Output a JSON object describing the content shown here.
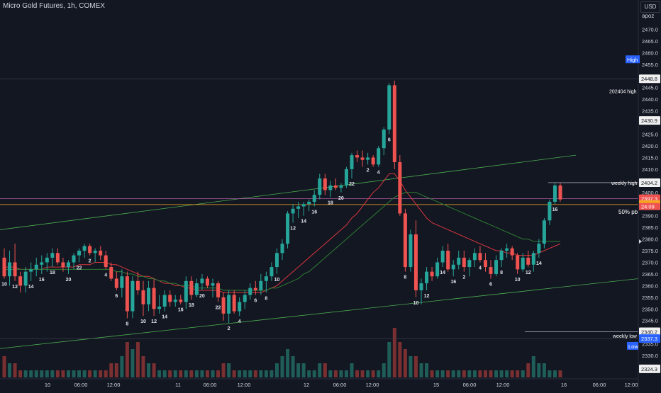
{
  "header": {
    "title": "Micro Gold Futures, 1h, COMEX",
    "currency": "USD",
    "scale_label": "apoz"
  },
  "colors": {
    "background": "#131722",
    "bull": "#26a69a",
    "bear": "#ef5350",
    "volume_bull": "#1f5d58",
    "volume_bear": "#7a2f31",
    "ma_red": "#d9363e",
    "ma_green": "#2e7d32",
    "trend": "#4caf50",
    "level_orange": "#f5a623",
    "level_magenta": "#b15aa7"
  },
  "chart_data": {
    "type": "candlestick",
    "title": "Micro Gold Futures, 1h, COMEX",
    "ylim": [
      2320,
      2475
    ],
    "grid": false,
    "y_ticks": [
      2325.0,
      2330.0,
      2335.0,
      2340.0,
      2345.0,
      2350.0,
      2355.0,
      2360.0,
      2365.0,
      2370.0,
      2375.0,
      2380.0,
      2385.0,
      2390.0,
      2395.0,
      2400.0,
      2405.0,
      2410.0,
      2415.0,
      2420.0,
      2425.0,
      2430.0,
      2435.0,
      2440.0,
      2445.0,
      2450.0,
      2455.0,
      2460.0,
      2465.0,
      2470.0
    ],
    "x_ticks": [
      "10",
      "06:00",
      "12:00",
      "11",
      "06:00",
      "12:00",
      "12",
      "06:00",
      "12:00",
      "15",
      "06:00",
      "12:00",
      "16",
      "06:00",
      "12:00"
    ],
    "candles": [
      [
        2372,
        2376,
        2363,
        2364
      ],
      [
        2364,
        2375,
        2360,
        2370
      ],
      [
        2370,
        2378,
        2362,
        2364
      ],
      [
        2364,
        2366,
        2357,
        2360
      ],
      [
        2360,
        2368,
        2357,
        2366
      ],
      [
        2366,
        2370,
        2362,
        2367
      ],
      [
        2367,
        2372,
        2364,
        2369
      ],
      [
        2369,
        2373,
        2365,
        2370
      ],
      [
        2370,
        2374,
        2366,
        2372
      ],
      [
        2372,
        2376,
        2368,
        2374
      ],
      [
        2374,
        2376,
        2369,
        2370
      ],
      [
        2370,
        2372,
        2366,
        2368
      ],
      [
        2368,
        2371,
        2365,
        2370
      ],
      [
        2370,
        2374,
        2367,
        2373
      ],
      [
        2373,
        2376,
        2370,
        2375
      ],
      [
        2375,
        2378,
        2372,
        2377
      ],
      [
        2377,
        2378,
        2373,
        2374
      ],
      [
        2374,
        2376,
        2370,
        2375
      ],
      [
        2375,
        2377,
        2371,
        2373
      ],
      [
        2373,
        2375,
        2367,
        2368
      ],
      [
        2368,
        2370,
        2362,
        2363
      ],
      [
        2363,
        2366,
        2358,
        2359
      ],
      [
        2359,
        2367,
        2355,
        2364
      ],
      [
        2364,
        2366,
        2346,
        2349
      ],
      [
        2349,
        2364,
        2346,
        2362
      ],
      [
        2362,
        2366,
        2356,
        2358
      ],
      [
        2358,
        2362,
        2347,
        2352
      ],
      [
        2352,
        2362,
        2349,
        2359
      ],
      [
        2359,
        2363,
        2347,
        2350
      ],
      [
        2350,
        2356,
        2348,
        2351
      ],
      [
        2351,
        2358,
        2349,
        2356
      ],
      [
        2356,
        2358,
        2351,
        2353
      ],
      [
        2353,
        2356,
        2351,
        2354
      ],
      [
        2354,
        2356,
        2352,
        2353
      ],
      [
        2353,
        2364,
        2350,
        2362
      ],
      [
        2362,
        2364,
        2354,
        2356
      ],
      [
        2356,
        2363,
        2355,
        2361
      ],
      [
        2361,
        2365,
        2358,
        2363
      ],
      [
        2363,
        2364,
        2359,
        2360
      ],
      [
        2360,
        2363,
        2355,
        2361
      ],
      [
        2361,
        2362,
        2353,
        2355
      ],
      [
        2355,
        2357,
        2345,
        2348
      ],
      [
        2348,
        2358,
        2344,
        2356
      ],
      [
        2356,
        2358,
        2348,
        2349
      ],
      [
        2349,
        2355,
        2347,
        2353
      ],
      [
        2353,
        2358,
        2350,
        2356
      ],
      [
        2356,
        2361,
        2354,
        2359
      ],
      [
        2359,
        2362,
        2356,
        2358
      ],
      [
        2358,
        2365,
        2356,
        2362
      ],
      [
        2362,
        2366,
        2357,
        2364
      ],
      [
        2364,
        2370,
        2362,
        2368
      ],
      [
        2368,
        2376,
        2365,
        2374
      ],
      [
        2374,
        2380,
        2371,
        2378
      ],
      [
        2378,
        2392,
        2376,
        2391
      ],
      [
        2391,
        2395,
        2387,
        2393
      ],
      [
        2393,
        2396,
        2389,
        2394
      ],
      [
        2394,
        2396,
        2390,
        2395
      ],
      [
        2395,
        2397,
        2392,
        2396
      ],
      [
        2396,
        2401,
        2394,
        2399
      ],
      [
        2399,
        2408,
        2397,
        2406
      ],
      [
        2406,
        2408,
        2399,
        2401
      ],
      [
        2401,
        2405,
        2398,
        2403
      ],
      [
        2403,
        2406,
        2401,
        2402
      ],
      [
        2402,
        2404,
        2400,
        2403
      ],
      [
        2403,
        2411,
        2402,
        2410
      ],
      [
        2410,
        2417,
        2406,
        2416
      ],
      [
        2416,
        2418,
        2413,
        2415
      ],
      [
        2415,
        2418,
        2411,
        2414
      ],
      [
        2414,
        2417,
        2412,
        2415
      ],
      [
        2415,
        2416,
        2411,
        2412
      ],
      [
        2412,
        2420,
        2411,
        2419
      ],
      [
        2419,
        2428,
        2416,
        2427
      ],
      [
        2427,
        2447,
        2425,
        2446
      ],
      [
        2446,
        2448,
        2410,
        2413
      ],
      [
        2413,
        2416,
        2390,
        2391
      ],
      [
        2391,
        2393,
        2366,
        2368
      ],
      [
        2368,
        2384,
        2366,
        2382
      ],
      [
        2382,
        2388,
        2355,
        2358
      ],
      [
        2358,
        2363,
        2352,
        2361
      ],
      [
        2361,
        2368,
        2358,
        2366
      ],
      [
        2366,
        2368,
        2362,
        2364
      ],
      [
        2364,
        2372,
        2363,
        2370
      ],
      [
        2370,
        2377,
        2368,
        2375
      ],
      [
        2375,
        2378,
        2366,
        2367
      ],
      [
        2367,
        2371,
        2364,
        2369
      ],
      [
        2369,
        2375,
        2367,
        2372
      ],
      [
        2372,
        2375,
        2366,
        2368
      ],
      [
        2368,
        2372,
        2364,
        2371
      ],
      [
        2371,
        2376,
        2368,
        2374
      ],
      [
        2374,
        2377,
        2370,
        2371
      ],
      [
        2371,
        2374,
        2366,
        2368
      ],
      [
        2368,
        2371,
        2363,
        2365
      ],
      [
        2365,
        2373,
        2364,
        2371
      ],
      [
        2371,
        2376,
        2368,
        2375
      ],
      [
        2375,
        2378,
        2372,
        2376
      ],
      [
        2376,
        2377,
        2371,
        2373
      ],
      [
        2373,
        2374,
        2365,
        2367
      ],
      [
        2367,
        2374,
        2366,
        2372
      ],
      [
        2372,
        2375,
        2368,
        2369
      ],
      [
        2369,
        2375,
        2366,
        2374
      ],
      [
        2374,
        2380,
        2372,
        2378
      ],
      [
        2378,
        2389,
        2376,
        2388
      ],
      [
        2388,
        2397,
        2386,
        2396
      ],
      [
        2396,
        2404,
        2395,
        2403
      ],
      [
        2403,
        2404,
        2396,
        2397
      ]
    ],
    "volume": [
      3,
      2,
      2,
      1,
      1,
      1,
      1,
      1,
      1,
      1,
      1,
      1,
      1,
      1,
      1,
      1,
      1,
      1,
      1,
      1,
      2,
      2,
      3,
      5,
      4,
      5,
      3,
      2,
      2,
      1,
      1,
      1,
      1,
      1,
      1,
      1,
      1,
      1,
      1,
      1,
      1,
      2,
      2,
      1,
      1,
      1,
      1,
      1,
      1,
      1,
      1,
      2,
      3,
      4,
      3,
      2,
      2,
      1,
      1,
      2,
      2,
      1,
      1,
      1,
      1,
      2,
      1,
      1,
      1,
      1,
      1,
      2,
      5,
      7,
      5,
      4,
      3,
      3,
      2,
      2,
      1,
      1,
      1,
      1,
      1,
      1,
      1,
      1,
      1,
      1,
      1,
      1,
      1,
      1,
      1,
      1,
      1,
      1,
      2,
      3,
      2,
      2,
      1,
      1,
      1
    ],
    "moving_averages": [
      {
        "color": "red",
        "values": [
          2368,
          2368,
          2368,
          2367,
          2367,
          2367,
          2367,
          2367,
          2368,
          2368,
          2368,
          2368,
          2368,
          2368,
          2369,
          2369,
          2369,
          2370,
          2370,
          2370,
          2369,
          2369,
          2368,
          2367,
          2366,
          2365,
          2364,
          2364,
          2363,
          2362,
          2361,
          2361,
          2360,
          2360,
          2359,
          2359,
          2358,
          2358,
          2358,
          2358,
          2358,
          2357,
          2357,
          2357,
          2357,
          2357,
          2357,
          2357,
          2357,
          2358,
          2359,
          2360,
          2362,
          2364,
          2366,
          2368,
          2370,
          2372,
          2374,
          2376,
          2378,
          2380,
          2382,
          2384,
          2386,
          2389,
          2391,
          2394,
          2397,
          2400,
          2402,
          2405,
          2408,
          2408,
          2405,
          2401,
          2398,
          2395,
          2392,
          2389,
          2387,
          2386,
          2385,
          2384,
          2383,
          2382,
          2381,
          2380,
          2379,
          2378,
          2377,
          2376,
          2375,
          2375,
          2374,
          2374,
          2373,
          2373,
          2373,
          2373,
          2374,
          2375,
          2376,
          2377,
          2378
        ]
      },
      {
        "color": "green",
        "values": [
          2367,
          2367,
          2367,
          2367,
          2367,
          2367,
          2367,
          2367,
          2367,
          2367,
          2367,
          2367,
          2367,
          2367,
          2367,
          2367,
          2367,
          2367,
          2367,
          2367,
          2367,
          2366,
          2366,
          2365,
          2365,
          2364,
          2364,
          2363,
          2363,
          2362,
          2362,
          2361,
          2361,
          2360,
          2360,
          2360,
          2359,
          2359,
          2359,
          2359,
          2359,
          2358,
          2358,
          2358,
          2358,
          2358,
          2358,
          2358,
          2358,
          2358,
          2359,
          2359,
          2360,
          2361,
          2362,
          2363,
          2365,
          2366,
          2368,
          2370,
          2372,
          2374,
          2376,
          2378,
          2380,
          2382,
          2384,
          2386,
          2388,
          2390,
          2392,
          2394,
          2396,
          2398,
          2399,
          2400,
          2400,
          2400,
          2399,
          2398,
          2397,
          2396,
          2395,
          2394,
          2393,
          2392,
          2391,
          2390,
          2389,
          2388,
          2387,
          2386,
          2385,
          2384,
          2383,
          2382,
          2381,
          2380,
          2380,
          2379,
          2379,
          2379,
          2379,
          2379,
          2379
        ]
      }
    ],
    "levels": [
      {
        "name": "High",
        "value": 2448.8
      },
      {
        "name": "202404 high",
        "value": 2448.8
      },
      {
        "name": "2430.9",
        "value": 2430.9
      },
      {
        "name": "weekly high",
        "value": 2404.2
      },
      {
        "name": "last",
        "value": 2397.3,
        "countdown": "24:09"
      },
      {
        "name": "50% pb",
        "value": 2394.8
      },
      {
        "name": "weekly low",
        "value": 2340.2
      },
      {
        "name": "Low",
        "value": 2337.3
      },
      {
        "name": "2324.3",
        "value": 2324.3
      }
    ],
    "bar_count_labels": [
      "10",
      "12",
      "14",
      "16",
      "18",
      "20",
      "22",
      "2",
      "4",
      "6",
      "8",
      "10",
      "12",
      "14",
      "16",
      "18",
      "20",
      "22",
      "2",
      "4",
      "6",
      "8",
      "10",
      "12",
      "14",
      "16",
      "18",
      "20",
      "22",
      "2",
      "4",
      "6",
      "8",
      "10",
      "12",
      "14",
      "16",
      "2",
      "4",
      "6",
      "8",
      "10",
      "12",
      "14",
      "16"
    ]
  },
  "price_axis": {
    "labels": {
      "high": "2448.8",
      "high_tag": "High",
      "r202404_tag": "202404 high",
      "r202404": "2448.8",
      "l2430": "2430.9",
      "weekly_high_tag": "weekly high",
      "weekly_high": "2404.2",
      "last": "2397.3",
      "countdown": "24:09",
      "pb_tag": "50% pb",
      "pb": "2394.8",
      "weekly_low_tag": "weekly low",
      "weekly_low": "2340.2",
      "low_tag": "Low",
      "low": "2337.3",
      "l2324": "2324.3"
    }
  }
}
